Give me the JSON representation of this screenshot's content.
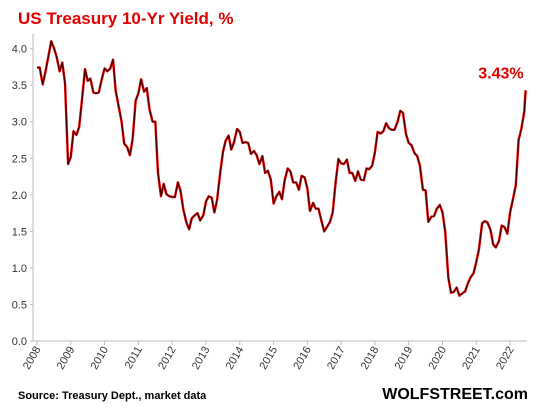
{
  "chart_data": {
    "type": "line",
    "title": "US Treasury 10-Yr Yield, %",
    "annotation": "3.43%",
    "source": "Source: Treasury Dept., market data",
    "brand": "WOLFSTREET.com",
    "xlim": [
      2008,
      2022.5
    ],
    "xticks": [
      2008,
      2009,
      2010,
      2011,
      2012,
      2013,
      2014,
      2015,
      2016,
      2017,
      2018,
      2019,
      2020,
      2021,
      2022
    ],
    "ylim": [
      0,
      4.2
    ],
    "yticks": [
      {
        "value": 0,
        "label": "0.0"
      },
      0.5,
      {
        "value": 1,
        "label": "1.0"
      },
      1.5,
      {
        "value": 2,
        "label": "2.0"
      },
      2.5,
      {
        "value": 3,
        "label": "3.0"
      },
      3.5,
      {
        "value": 4,
        "label": "4.0"
      }
    ],
    "grid": false,
    "x": [
      2008,
      2008.08,
      2008.17,
      2008.25,
      2008.33,
      2008.42,
      2008.5,
      2008.58,
      2008.67,
      2008.75,
      2008.83,
      2008.92,
      2009,
      2009.08,
      2009.17,
      2009.25,
      2009.33,
      2009.42,
      2009.5,
      2009.58,
      2009.67,
      2009.75,
      2009.83,
      2009.92,
      2010,
      2010.08,
      2010.17,
      2010.25,
      2010.33,
      2010.42,
      2010.5,
      2010.58,
      2010.67,
      2010.75,
      2010.83,
      2010.92,
      2011,
      2011.08,
      2011.17,
      2011.25,
      2011.33,
      2011.42,
      2011.5,
      2011.58,
      2011.67,
      2011.75,
      2011.83,
      2011.92,
      2012,
      2012.08,
      2012.17,
      2012.25,
      2012.33,
      2012.42,
      2012.5,
      2012.58,
      2012.67,
      2012.75,
      2012.83,
      2012.92,
      2013,
      2013.08,
      2013.17,
      2013.25,
      2013.33,
      2013.42,
      2013.5,
      2013.58,
      2013.67,
      2013.75,
      2013.83,
      2013.92,
      2014,
      2014.08,
      2014.17,
      2014.25,
      2014.33,
      2014.42,
      2014.5,
      2014.58,
      2014.67,
      2014.75,
      2014.83,
      2014.92,
      2015,
      2015.08,
      2015.17,
      2015.25,
      2015.33,
      2015.42,
      2015.5,
      2015.58,
      2015.67,
      2015.75,
      2015.83,
      2015.92,
      2016,
      2016.08,
      2016.17,
      2016.25,
      2016.33,
      2016.42,
      2016.5,
      2016.58,
      2016.67,
      2016.75,
      2016.83,
      2016.92,
      2017,
      2017.08,
      2017.17,
      2017.25,
      2017.33,
      2017.42,
      2017.5,
      2017.58,
      2017.67,
      2017.75,
      2017.83,
      2017.92,
      2018,
      2018.08,
      2018.17,
      2018.25,
      2018.33,
      2018.42,
      2018.5,
      2018.58,
      2018.67,
      2018.75,
      2018.83,
      2018.92,
      2019,
      2019.08,
      2019.17,
      2019.25,
      2019.33,
      2019.42,
      2019.5,
      2019.58,
      2019.67,
      2019.75,
      2019.83,
      2019.92,
      2020,
      2020.08,
      2020.17,
      2020.25,
      2020.33,
      2020.42,
      2020.5,
      2020.58,
      2020.67,
      2020.75,
      2020.83,
      2020.92,
      2021,
      2021.08,
      2021.17,
      2021.25,
      2021.33,
      2021.42,
      2021.5,
      2021.58,
      2021.67,
      2021.75,
      2021.83,
      2021.92,
      2022,
      2022.08,
      2022.17,
      2022.25,
      2022.33,
      2022.42,
      2022.46
    ],
    "series": [
      {
        "name": "US Treasury 10-Yr Yield",
        "color": "#e00000",
        "values": [
          3.74,
          3.74,
          3.51,
          3.68,
          3.88,
          4.1,
          4.01,
          3.89,
          3.69,
          3.81,
          3.53,
          2.42,
          2.52,
          2.87,
          2.82,
          2.93,
          3.29,
          3.72,
          3.56,
          3.59,
          3.4,
          3.39,
          3.4,
          3.59,
          3.73,
          3.69,
          3.73,
          3.85,
          3.42,
          3.2,
          3.01,
          2.7,
          2.65,
          2.54,
          2.76,
          3.29,
          3.39,
          3.58,
          3.41,
          3.46,
          3.17,
          3,
          3,
          2.3,
          1.98,
          2.15,
          2.01,
          1.98,
          1.97,
          1.97,
          2.17,
          2.05,
          1.8,
          1.62,
          1.53,
          1.68,
          1.72,
          1.75,
          1.65,
          1.72,
          1.91,
          1.98,
          1.96,
          1.76,
          1.93,
          2.3,
          2.58,
          2.74,
          2.81,
          2.62,
          2.72,
          2.9,
          2.86,
          2.71,
          2.72,
          2.71,
          2.56,
          2.6,
          2.54,
          2.42,
          2.53,
          2.3,
          2.33,
          2.21,
          1.88,
          1.98,
          2.04,
          1.94,
          2.2,
          2.36,
          2.32,
          2.17,
          2.17,
          2.07,
          2.26,
          2.24,
          2.09,
          1.78,
          1.89,
          1.81,
          1.81,
          1.64,
          1.5,
          1.56,
          1.63,
          1.76,
          2.14,
          2.49,
          2.43,
          2.42,
          2.48,
          2.3,
          2.3,
          2.19,
          2.32,
          2.21,
          2.2,
          2.36,
          2.35,
          2.4,
          2.58,
          2.86,
          2.84,
          2.87,
          2.98,
          2.91,
          2.89,
          2.89,
          3,
          3.15,
          3.12,
          2.83,
          2.71,
          2.68,
          2.57,
          2.53,
          2.4,
          2.07,
          2.06,
          1.63,
          1.7,
          1.71,
          1.81,
          1.86,
          1.76,
          1.5,
          0.87,
          0.66,
          0.67,
          0.73,
          0.62,
          0.65,
          0.68,
          0.79,
          0.87,
          0.93,
          1.08,
          1.26,
          1.61,
          1.64,
          1.62,
          1.52,
          1.32,
          1.28,
          1.37,
          1.58,
          1.56,
          1.47,
          1.76,
          1.93,
          2.13,
          2.75,
          2.9,
          3.14,
          3.43
        ]
      }
    ]
  }
}
